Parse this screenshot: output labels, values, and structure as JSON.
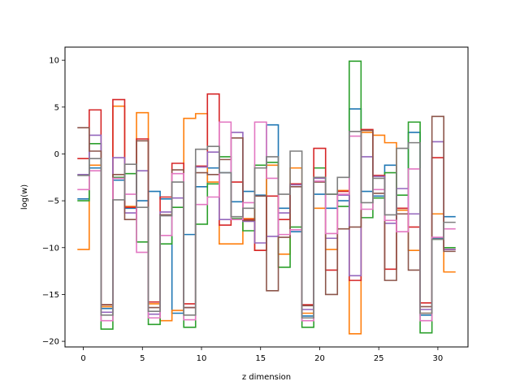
{
  "chart_data": {
    "type": "line",
    "title": "",
    "xlabel": "z dimension",
    "ylabel": "log(w)",
    "xlim": [
      -1.55,
      32.55
    ],
    "ylim": [
      -20.6,
      11.4
    ],
    "xticks": [
      0,
      5,
      10,
      15,
      20,
      25,
      30
    ],
    "yticks": [
      -20,
      -15,
      -10,
      -5,
      0,
      5,
      10
    ],
    "grid": false,
    "legend": "none",
    "step_style": "steps-mid",
    "x": [
      0,
      1,
      2,
      3,
      4,
      5,
      6,
      7,
      8,
      9,
      10,
      11,
      12,
      13,
      14,
      15,
      16,
      17,
      18,
      19,
      20,
      21,
      22,
      23,
      24,
      25,
      26,
      27,
      28,
      29,
      30,
      31
    ],
    "series": [
      {
        "color": "#1f77b4",
        "values": [
          -4.8,
          -1.5,
          -16.5,
          -2.8,
          -5.8,
          -5.0,
          -4.0,
          -4.8,
          -17.0,
          -8.6,
          -3.5,
          -1.5,
          -2.0,
          -5.1,
          -4.0,
          -4.4,
          3.1,
          -5.8,
          -8.3,
          -17.3,
          -4.3,
          -5.8,
          -5.0,
          4.8,
          -4.0,
          -4.5,
          -1.2,
          -5.8,
          2.3,
          -17.2,
          -9.0,
          -6.7
        ]
      },
      {
        "color": "#ff7f0e",
        "values": [
          -10.2,
          -1.2,
          -16.3,
          5.1,
          -5.6,
          4.4,
          -16.0,
          -17.8,
          -16.7,
          3.8,
          4.3,
          -3.0,
          -9.6,
          -9.6,
          -6.9,
          -10.3,
          -1.2,
          -10.7,
          -1.5,
          -17.0,
          -5.8,
          -10.2,
          -3.9,
          -19.2,
          2.3,
          2.0,
          1.2,
          -6.0,
          -10.3,
          -17.0,
          -6.4,
          -12.6
        ]
      },
      {
        "color": "#2ca02c",
        "values": [
          -5.0,
          1.1,
          -18.7,
          -2.5,
          -2.1,
          -9.4,
          -18.2,
          -9.6,
          -5.7,
          -18.5,
          -7.5,
          -3.2,
          -0.3,
          -6.9,
          -8.2,
          -1.2,
          -0.9,
          -12.1,
          -7.8,
          -18.5,
          -1.5,
          -4.3,
          -5.6,
          9.9,
          -6.8,
          -4.7,
          -2.0,
          -4.4,
          3.4,
          -19.1,
          -9.1,
          -10.0
        ]
      },
      {
        "color": "#d62728",
        "values": [
          -0.5,
          4.7,
          -16.1,
          5.8,
          -5.7,
          1.6,
          -15.8,
          -4.6,
          -1.0,
          -16.0,
          -1.3,
          6.4,
          -7.6,
          -3.0,
          -7.0,
          -10.3,
          -4.5,
          -7.0,
          -3.2,
          -16.1,
          0.6,
          -12.4,
          -4.0,
          -13.5,
          2.6,
          -2.3,
          -12.3,
          -5.8,
          -7.8,
          -15.9,
          -0.4,
          -10.2
        ]
      },
      {
        "color": "#9467bd",
        "values": [
          -2.2,
          2.0,
          -16.9,
          -0.4,
          -6.3,
          -1.8,
          -17.1,
          -6.2,
          -4.7,
          -16.4,
          -1.4,
          0.2,
          -7.0,
          2.3,
          -7.2,
          -9.5,
          -8.8,
          -6.3,
          -3.3,
          -16.6,
          -2.6,
          -9.0,
          -4.4,
          -13.0,
          -0.3,
          -2.4,
          -7.4,
          -3.7,
          -6.4,
          -16.6,
          1.3,
          -10.2
        ]
      },
      {
        "color": "#8c564b",
        "values": [
          2.8,
          0.3,
          -16.1,
          -2.2,
          -7.0,
          1.4,
          -16.4,
          -6.5,
          -1.7,
          -16.4,
          -2.0,
          -2.2,
          -0.6,
          1.7,
          -7.1,
          -4.5,
          -14.6,
          -8.9,
          -3.5,
          -16.2,
          -3.0,
          -15.0,
          -8.0,
          -7.8,
          2.5,
          -4.2,
          -13.5,
          -6.4,
          -12.4,
          -16.3,
          4.0,
          -10.4
        ]
      },
      {
        "color": "#e377c2",
        "values": [
          -3.8,
          -1.8,
          -17.8,
          -2.6,
          -4.3,
          -10.5,
          -17.5,
          -8.7,
          -2.1,
          -17.7,
          -5.4,
          -4.6,
          3.4,
          -7.0,
          -5.2,
          3.4,
          -2.6,
          -8.6,
          -8.1,
          -17.8,
          -2.9,
          -8.5,
          -4.3,
          1.9,
          -5.9,
          -3.8,
          -7.1,
          -8.3,
          -1.6,
          -17.8,
          -8.9,
          -8.0
        ]
      },
      {
        "color": "#7f7f7f",
        "values": [
          -2.3,
          -0.5,
          -17.2,
          -4.9,
          -1.1,
          -5.7,
          -16.8,
          -6.6,
          -3.0,
          -17.2,
          0.5,
          0.8,
          -2.0,
          -6.7,
          -5.8,
          -1.5,
          -0.3,
          -4.3,
          0.3,
          -17.5,
          -2.5,
          -4.3,
          -2.5,
          2.4,
          -5.2,
          -2.6,
          -6.5,
          0.6,
          1.2,
          -17.0,
          -9.1,
          -7.3
        ]
      }
    ]
  }
}
